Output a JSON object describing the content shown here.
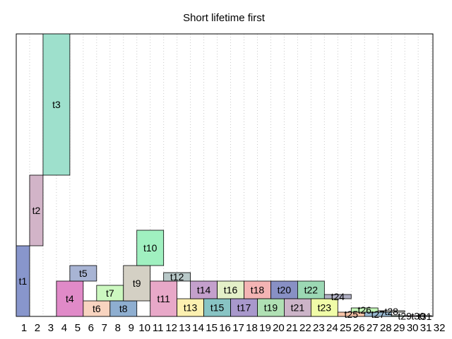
{
  "chart_data": {
    "type": "bar",
    "title": "Short lifetime first",
    "xlabel": "",
    "ylabel": "",
    "grid": "vertical dotted",
    "x_ticks": [
      "1",
      "2",
      "3",
      "4",
      "5",
      "6",
      "7",
      "8",
      "9",
      "10",
      "11",
      "12",
      "13",
      "14",
      "15",
      "16",
      "17",
      "18",
      "19",
      "20",
      "21",
      "22",
      "23",
      "24",
      "25",
      "26",
      "27",
      "28",
      "29",
      "30",
      "31",
      "32"
    ],
    "xlim": [
      1,
      32.1
    ],
    "ylim": [
      0,
      400
    ],
    "blocks": [
      {
        "label": "t1",
        "x0": 1,
        "x1": 2,
        "y0": 0,
        "y1": 100,
        "color": "#8896cc"
      },
      {
        "label": "t2",
        "x0": 2,
        "x1": 3,
        "y0": 100,
        "y1": 200,
        "color": "#d2b4c8"
      },
      {
        "label": "t3",
        "x0": 3,
        "x1": 5,
        "y0": 200,
        "y1": 400,
        "color": "#9ee0cc"
      },
      {
        "label": "t4",
        "x0": 4,
        "x1": 6,
        "y0": 0,
        "y1": 50,
        "color": "#e08ac8"
      },
      {
        "label": "t5",
        "x0": 5,
        "x1": 7,
        "y0": 50,
        "y1": 72,
        "color": "#a8b4d4"
      },
      {
        "label": "t6",
        "x0": 6,
        "x1": 8,
        "y0": 0,
        "y1": 22,
        "color": "#f8d4c0"
      },
      {
        "label": "t7",
        "x0": 7,
        "x1": 9,
        "y0": 22,
        "y1": 44,
        "color": "#ccf8c0"
      },
      {
        "label": "t8",
        "x0": 8,
        "x1": 10,
        "y0": 0,
        "y1": 22,
        "color": "#8eaed0"
      },
      {
        "label": "t9",
        "x0": 9,
        "x1": 11,
        "y0": 22,
        "y1": 72,
        "color": "#d4d0c4"
      },
      {
        "label": "t10",
        "x0": 10,
        "x1": 12,
        "y0": 72,
        "y1": 122,
        "color": "#a0f0c0"
      },
      {
        "label": "t11",
        "x0": 11,
        "x1": 13,
        "y0": 0,
        "y1": 50,
        "color": "#e8a8c8"
      },
      {
        "label": "t12",
        "x0": 12,
        "x1": 14,
        "y0": 50,
        "y1": 62,
        "color": "#b8c8c8"
      },
      {
        "label": "t13",
        "x0": 13,
        "x1": 15,
        "y0": 0,
        "y1": 25,
        "color": "#fcf0b0"
      },
      {
        "label": "t14",
        "x0": 14,
        "x1": 16,
        "y0": 25,
        "y1": 50,
        "color": "#c4a0cc"
      },
      {
        "label": "t15",
        "x0": 15,
        "x1": 17,
        "y0": 0,
        "y1": 25,
        "color": "#88c4c4"
      },
      {
        "label": "t16",
        "x0": 16,
        "x1": 18,
        "y0": 25,
        "y1": 50,
        "color": "#e4f0c8"
      },
      {
        "label": "t17",
        "x0": 17,
        "x1": 19,
        "y0": 0,
        "y1": 25,
        "color": "#a898cc"
      },
      {
        "label": "t18",
        "x0": 18,
        "x1": 20,
        "y0": 25,
        "y1": 50,
        "color": "#f4b4b4"
      },
      {
        "label": "t19",
        "x0": 19,
        "x1": 21,
        "y0": 0,
        "y1": 25,
        "color": "#b0e0b4"
      },
      {
        "label": "t20",
        "x0": 20,
        "x1": 22,
        "y0": 25,
        "y1": 50,
        "color": "#8890c4"
      },
      {
        "label": "t21",
        "x0": 21,
        "x1": 23,
        "y0": 0,
        "y1": 25,
        "color": "#ccb4c8"
      },
      {
        "label": "t22",
        "x0": 22,
        "x1": 24,
        "y0": 25,
        "y1": 50,
        "color": "#9cd8b4"
      },
      {
        "label": "t23",
        "x0": 23,
        "x1": 25,
        "y0": 0,
        "y1": 25,
        "color": "#f0fca8"
      },
      {
        "label": "t24",
        "x0": 24,
        "x1": 26,
        "y0": 25,
        "y1": 31,
        "color": "#b0b0c4"
      },
      {
        "label": "t25",
        "x0": 25,
        "x1": 27,
        "y0": 0,
        "y1": 6,
        "color": "#f8c4a8"
      },
      {
        "label": "t26",
        "x0": 26,
        "x1": 28,
        "y0": 6,
        "y1": 12,
        "color": "#c4f8b8"
      },
      {
        "label": "t27",
        "x0": 27,
        "x1": 29,
        "y0": 0,
        "y1": 6,
        "color": "#98b8d0"
      },
      {
        "label": "t28",
        "x0": 28,
        "x1": 30,
        "y0": 6,
        "y1": 8,
        "color": "#d0d0c8"
      },
      {
        "label": "t29",
        "x0": 29,
        "x1": 31,
        "y0": 0,
        "y1": 1,
        "color": "#a0f0b8"
      },
      {
        "label": "t30",
        "x0": 30,
        "x1": 32,
        "y0": 0,
        "y1": 0.6,
        "color": "#e8b4cc"
      },
      {
        "label": "t31",
        "x0": 31,
        "x1": 32,
        "y0": 0,
        "y1": 0.4,
        "color": "#c0c8c8"
      }
    ]
  }
}
